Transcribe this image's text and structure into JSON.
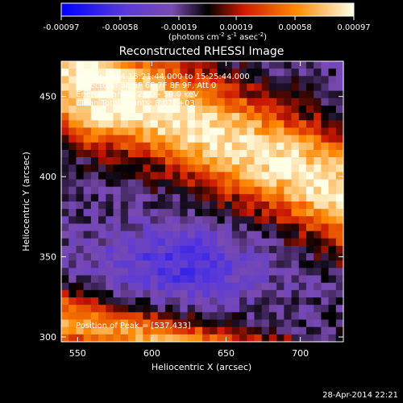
{
  "colorbar": {
    "ticks": [
      "-0.00097",
      "-0.00058",
      "-0.00019",
      "0.00019",
      "0.00058",
      "0.00097"
    ],
    "tick_values": [
      -0.00097,
      -0.00058,
      -0.00019,
      0.00019,
      0.00058,
      0.00097
    ],
    "range": [
      -0.00097,
      0.00097
    ],
    "units_prefix": "(photons cm",
    "units_exp1": "-2",
    "units_mid": " s",
    "units_exp2": "-1",
    "units_mid2": " asec",
    "units_exp3": "-2",
    "units_suffix": ")",
    "colors": [
      "#0000ff",
      "#6a35c8",
      "#000000",
      "#cc1800",
      "#ff8800",
      "#ffffe8"
    ]
  },
  "chart_data": {
    "type": "heatmap",
    "title": "Reconstructed RHESSI Image",
    "xlabel": "Heliocentric X (arcsec)",
    "ylabel": "Heliocentric Y (arcsec)",
    "xlim": [
      539,
      729
    ],
    "ylim": [
      297,
      472
    ],
    "xticks": [
      550,
      600,
      650,
      700
    ],
    "yticks": [
      300,
      350,
      400,
      450
    ],
    "info": [
      "28-Apr-2014 15:21:44.000 to 15:25:44.000",
      "Detectors: 3F 5F 6F 7F 8F 9F, Att 0",
      "Energy Range: 25.0 - 50.0 keV",
      "Clean     Total counts: 8.07E+03"
    ],
    "peak_label": "Position of Peak = [537,433]",
    "peak": [
      537,
      433
    ]
  },
  "footer": {
    "timestamp": "28-Apr-2014 22:21"
  }
}
